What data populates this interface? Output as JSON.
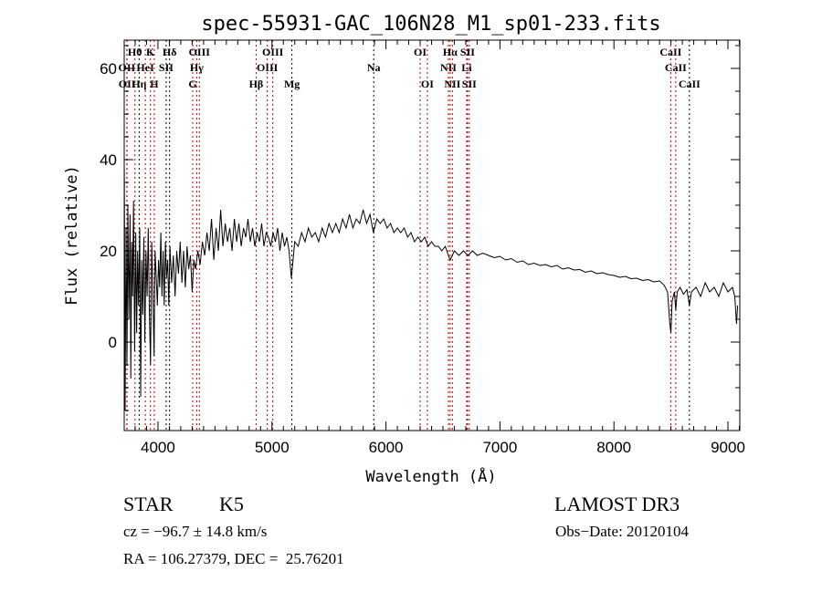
{
  "chart_data": {
    "type": "line",
    "title": "spec-55931-GAC_106N28_M1_sp01-233.fits",
    "xlabel": "Wavelength (Å)",
    "ylabel": "Flux (relative)",
    "xlim": [
      3704,
      9104
    ],
    "ylim": [
      -19.4,
      66.2
    ],
    "xticks": [
      4000,
      5000,
      6000,
      7000,
      8000,
      9000
    ],
    "yticks": [
      0,
      20,
      40,
      60
    ],
    "grid": false,
    "line_colors": {
      "red": "#c00000",
      "black": "#000000"
    },
    "lines": [
      {
        "wl": 3727,
        "label": "OII",
        "row": 2,
        "color": "red"
      },
      {
        "wl": 3729,
        "label": "OII",
        "row": 3,
        "color": "red"
      },
      {
        "wl": 3798,
        "label": "Hθ",
        "row": 1,
        "color": "red"
      },
      {
        "wl": 3835,
        "label": "Hη",
        "row": 3,
        "color": "black"
      },
      {
        "wl": 3889,
        "label": "HeI",
        "row": 2,
        "color": "red"
      },
      {
        "wl": 3934,
        "label": "K",
        "row": 1,
        "color": "red"
      },
      {
        "wl": 3968,
        "label": "H",
        "row": 3,
        "color": "red"
      },
      {
        "wl": 4072,
        "label": "SII",
        "row": 2,
        "color": "black"
      },
      {
        "wl": 4102,
        "label": "Hδ",
        "row": 1,
        "color": "black"
      },
      {
        "wl": 4305,
        "label": "G",
        "row": 3,
        "color": "red"
      },
      {
        "wl": 4340,
        "label": "Hγ",
        "row": 2,
        "color": "red"
      },
      {
        "wl": 4363,
        "label": "OIII",
        "row": 1,
        "color": "red"
      },
      {
        "wl": 4861,
        "label": "Hβ",
        "row": 3,
        "color": "red"
      },
      {
        "wl": 4959,
        "label": "OIII",
        "row": 2,
        "color": "red"
      },
      {
        "wl": 5007,
        "label": "OIII",
        "row": 1,
        "color": "red"
      },
      {
        "wl": 5175,
        "label": "Mg",
        "row": 3,
        "color": "black"
      },
      {
        "wl": 5893,
        "label": "Na",
        "row": 2,
        "color": "black"
      },
      {
        "wl": 6300,
        "label": "OI",
        "row": 1,
        "color": "red"
      },
      {
        "wl": 6363,
        "label": "OI",
        "row": 3,
        "color": "red"
      },
      {
        "wl": 6548,
        "label": "NII",
        "row": 2,
        "color": "red"
      },
      {
        "wl": 6563,
        "label": "Hα",
        "row": 1,
        "color": "red"
      },
      {
        "wl": 6583,
        "label": "NII",
        "row": 3,
        "color": "red"
      },
      {
        "wl": 6708,
        "label": "Li",
        "row": 2,
        "color": "red"
      },
      {
        "wl": 6716,
        "label": "SII",
        "row": 1,
        "color": "red"
      },
      {
        "wl": 6731,
        "label": "SII",
        "row": 3,
        "color": "red"
      },
      {
        "wl": 8498,
        "label": "CaII",
        "row": 1,
        "color": "red"
      },
      {
        "wl": 8542,
        "label": "CaII",
        "row": 2,
        "color": "red"
      },
      {
        "wl": 8662,
        "label": "CaII",
        "row": 3,
        "color": "black"
      }
    ],
    "series": [
      {
        "name": "flux",
        "points": [
          [
            3705,
            38
          ],
          [
            3712,
            -15
          ],
          [
            3720,
            25
          ],
          [
            3728,
            -5
          ],
          [
            3736,
            30
          ],
          [
            3745,
            5
          ],
          [
            3755,
            28
          ],
          [
            3762,
            -8
          ],
          [
            3770,
            22
          ],
          [
            3778,
            10
          ],
          [
            3786,
            31
          ],
          [
            3795,
            -2
          ],
          [
            3805,
            24
          ],
          [
            3813,
            2
          ],
          [
            3822,
            20
          ],
          [
            3830,
            8
          ],
          [
            3840,
            25
          ],
          [
            3848,
            -12
          ],
          [
            3858,
            18
          ],
          [
            3866,
            6
          ],
          [
            3876,
            23
          ],
          [
            3885,
            0
          ],
          [
            3895,
            20
          ],
          [
            3905,
            10
          ],
          [
            3915,
            25
          ],
          [
            3925,
            6
          ],
          [
            3935,
            -5
          ],
          [
            3945,
            22
          ],
          [
            3955,
            12
          ],
          [
            3966,
            -3
          ],
          [
            3975,
            20
          ],
          [
            3985,
            14
          ],
          [
            3995,
            8
          ],
          [
            4005,
            18
          ],
          [
            4015,
            12
          ],
          [
            4025,
            24
          ],
          [
            4035,
            10
          ],
          [
            4045,
            20
          ],
          [
            4055,
            8
          ],
          [
            4065,
            22
          ],
          [
            4075,
            14
          ],
          [
            4085,
            18
          ],
          [
            4095,
            8
          ],
          [
            4105,
            21
          ],
          [
            4120,
            13
          ],
          [
            4135,
            19
          ],
          [
            4150,
            10
          ],
          [
            4165,
            20
          ],
          [
            4180,
            15
          ],
          [
            4195,
            22
          ],
          [
            4210,
            13
          ],
          [
            4225,
            20
          ],
          [
            4240,
            12
          ],
          [
            4255,
            21
          ],
          [
            4270,
            16
          ],
          [
            4285,
            19
          ],
          [
            4300,
            11
          ],
          [
            4315,
            18
          ],
          [
            4330,
            16
          ],
          [
            4350,
            20
          ],
          [
            4370,
            17
          ],
          [
            4390,
            22
          ],
          [
            4410,
            19
          ],
          [
            4430,
            24
          ],
          [
            4450,
            20
          ],
          [
            4470,
            27
          ],
          [
            4490,
            18
          ],
          [
            4510,
            25
          ],
          [
            4530,
            20
          ],
          [
            4550,
            29
          ],
          [
            4570,
            21
          ],
          [
            4590,
            26
          ],
          [
            4610,
            22
          ],
          [
            4630,
            25
          ],
          [
            4650,
            20
          ],
          [
            4670,
            27
          ],
          [
            4690,
            22
          ],
          [
            4710,
            26
          ],
          [
            4730,
            21
          ],
          [
            4750,
            25
          ],
          [
            4770,
            23
          ],
          [
            4790,
            27
          ],
          [
            4810,
            22
          ],
          [
            4830,
            25
          ],
          [
            4850,
            21
          ],
          [
            4870,
            24
          ],
          [
            4890,
            22
          ],
          [
            4910,
            26
          ],
          [
            4930,
            21
          ],
          [
            4950,
            24
          ],
          [
            4970,
            23
          ],
          [
            4990,
            21
          ],
          [
            5010,
            24
          ],
          [
            5030,
            22
          ],
          [
            5050,
            25
          ],
          [
            5070,
            20
          ],
          [
            5090,
            24
          ],
          [
            5110,
            21
          ],
          [
            5130,
            23
          ],
          [
            5150,
            20
          ],
          [
            5170,
            14
          ],
          [
            5185,
            18
          ],
          [
            5200,
            22
          ],
          [
            5230,
            21
          ],
          [
            5260,
            24
          ],
          [
            5290,
            22
          ],
          [
            5320,
            25
          ],
          [
            5350,
            23
          ],
          [
            5380,
            24
          ],
          [
            5410,
            22
          ],
          [
            5440,
            25
          ],
          [
            5470,
            23
          ],
          [
            5500,
            26
          ],
          [
            5530,
            24
          ],
          [
            5560,
            26
          ],
          [
            5590,
            24
          ],
          [
            5620,
            27
          ],
          [
            5650,
            25
          ],
          [
            5680,
            28
          ],
          [
            5710,
            25
          ],
          [
            5740,
            27
          ],
          [
            5770,
            26
          ],
          [
            5800,
            29
          ],
          [
            5830,
            26
          ],
          [
            5860,
            28
          ],
          [
            5890,
            24
          ],
          [
            5920,
            27
          ],
          [
            5950,
            26
          ],
          [
            5980,
            27
          ],
          [
            6010,
            25
          ],
          [
            6040,
            26
          ],
          [
            6070,
            24
          ],
          [
            6100,
            25
          ],
          [
            6130,
            24
          ],
          [
            6160,
            25
          ],
          [
            6190,
            23
          ],
          [
            6220,
            24
          ],
          [
            6250,
            22
          ],
          [
            6280,
            23
          ],
          [
            6310,
            22
          ],
          [
            6340,
            23
          ],
          [
            6370,
            21
          ],
          [
            6400,
            22
          ],
          [
            6430,
            21
          ],
          [
            6460,
            21
          ],
          [
            6490,
            20
          ],
          [
            6520,
            21
          ],
          [
            6563,
            18
          ],
          [
            6600,
            20
          ],
          [
            6640,
            19
          ],
          [
            6680,
            20
          ],
          [
            6720,
            19
          ],
          [
            6760,
            20
          ],
          [
            6800,
            19
          ],
          [
            6850,
            19.5
          ],
          [
            6900,
            19
          ],
          [
            6950,
            18.5
          ],
          [
            7000,
            18.8
          ],
          [
            7050,
            18
          ],
          [
            7100,
            18.3
          ],
          [
            7150,
            17.5
          ],
          [
            7200,
            17.8
          ],
          [
            7250,
            17
          ],
          [
            7300,
            17.3
          ],
          [
            7350,
            16.8
          ],
          [
            7400,
            17
          ],
          [
            7450,
            16.5
          ],
          [
            7500,
            16.8
          ],
          [
            7550,
            16
          ],
          [
            7600,
            16.3
          ],
          [
            7650,
            15.8
          ],
          [
            7700,
            15.9
          ],
          [
            7750,
            15.3
          ],
          [
            7800,
            15.6
          ],
          [
            7850,
            15
          ],
          [
            7900,
            15.2
          ],
          [
            7950,
            14.8
          ],
          [
            8000,
            14.6
          ],
          [
            8050,
            14.2
          ],
          [
            8100,
            14.4
          ],
          [
            8150,
            13.9
          ],
          [
            8200,
            14
          ],
          [
            8250,
            13.5
          ],
          [
            8300,
            13.7
          ],
          [
            8350,
            13.2
          ],
          [
            8400,
            13.4
          ],
          [
            8440,
            12.5
          ],
          [
            8470,
            11
          ],
          [
            8490,
            4
          ],
          [
            8500,
            2
          ],
          [
            8510,
            9
          ],
          [
            8530,
            11
          ],
          [
            8542,
            7
          ],
          [
            8555,
            11
          ],
          [
            8580,
            12
          ],
          [
            8610,
            10.5
          ],
          [
            8640,
            11.5
          ],
          [
            8662,
            8
          ],
          [
            8680,
            11
          ],
          [
            8720,
            12
          ],
          [
            8760,
            10
          ],
          [
            8800,
            13
          ],
          [
            8840,
            11
          ],
          [
            8880,
            12
          ],
          [
            8920,
            10
          ],
          [
            8960,
            13
          ],
          [
            9000,
            11
          ],
          [
            9040,
            12
          ],
          [
            9060,
            10
          ],
          [
            9075,
            4
          ],
          [
            9085,
            8
          ]
        ]
      }
    ]
  },
  "info": {
    "object_type": "STAR",
    "subclass": "K5",
    "release": "LAMOST DR3",
    "cz": "cz = −96.7 ± 14.8 km/s",
    "obs_date": "Obs−Date: 20120104",
    "coords": "RA = 106.27379, DEC =  25.76201"
  }
}
